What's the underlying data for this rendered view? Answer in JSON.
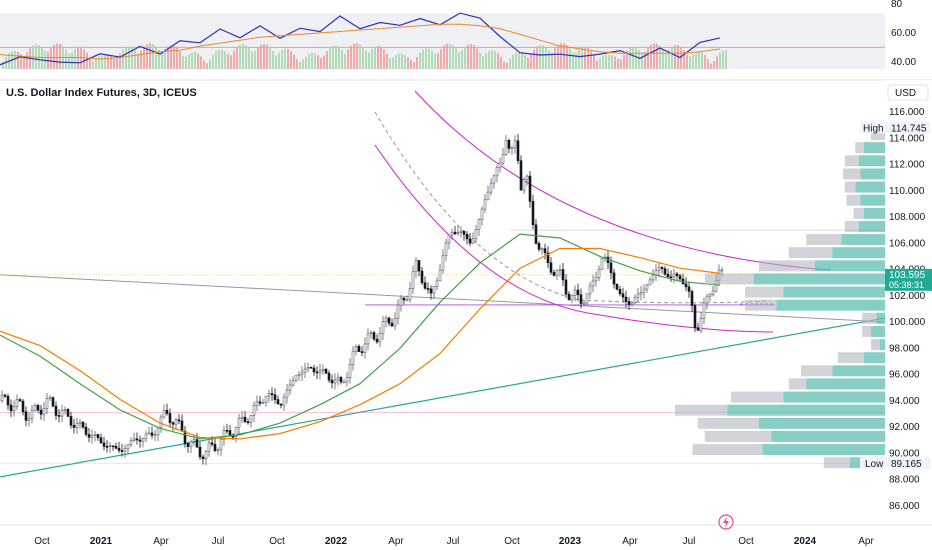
{
  "chart_data": [
    {
      "type": "line",
      "panel": "indicator",
      "ylim": [
        33,
        80
      ],
      "y_ticks": [
        "80",
        "60.00",
        "40.00"
      ],
      "y_tick_values": [
        80,
        60,
        40
      ],
      "band": [
        35,
        73.5
      ],
      "level_line": 50,
      "series": [
        {
          "color": "#2f2fb8",
          "x": [
            0,
            20,
            40,
            60,
            80,
            100,
            120,
            140,
            160,
            180,
            200,
            220,
            240,
            260,
            280,
            300,
            320,
            340,
            360,
            380,
            400,
            420,
            440,
            460,
            480,
            500,
            520,
            540,
            560,
            580,
            600,
            620,
            640,
            660,
            680,
            700,
            720
          ],
          "values": [
            38,
            45,
            43,
            40,
            38,
            44,
            43,
            52,
            47,
            55,
            52,
            61,
            56,
            66,
            58,
            64,
            60,
            70,
            62,
            68,
            67,
            71,
            65,
            72,
            69,
            58,
            48,
            46,
            45,
            42,
            44,
            48,
            44,
            51,
            43,
            52,
            55
          ]
        },
        {
          "color": "#e68a2e",
          "x": [
            0,
            20,
            40,
            60,
            80,
            100,
            120,
            140,
            160,
            180,
            200,
            220,
            240,
            260,
            280,
            300,
            320,
            340,
            360,
            380,
            400,
            420,
            440,
            460,
            480,
            500,
            520,
            540,
            560,
            580,
            600,
            620,
            640,
            660,
            680,
            700,
            720
          ],
          "values": [
            45,
            44,
            43,
            43,
            43,
            42,
            43,
            45,
            47,
            48,
            51,
            53,
            55,
            57,
            58,
            59,
            60,
            61,
            62,
            63,
            64,
            65,
            66,
            66,
            65,
            63,
            59,
            55,
            51,
            49,
            47,
            46,
            46,
            46,
            46,
            47,
            49
          ]
        }
      ]
    },
    {
      "type": "candlestick",
      "panel": "main",
      "title": "U.S. Dollar Index Futures, 3D, ICEUS",
      "currency_button": "USD",
      "ylim": [
        84.3,
        117.5
      ],
      "y_ticks": [
        "116.000",
        "114.000",
        "112.000",
        "110.000",
        "108.000",
        "106.000",
        "104.000",
        "102.000",
        "100.000",
        "98.000",
        "96.000",
        "94.000",
        "92.000",
        "90.000",
        "88.000",
        "86.000"
      ],
      "y_tick_values": [
        116,
        114,
        112,
        110,
        108,
        106,
        104,
        102,
        100,
        98,
        96,
        94,
        92,
        90,
        88,
        86
      ],
      "x_labels": [
        "Oct",
        "2021",
        "Apr",
        "Jul",
        "Oct",
        "2022",
        "Apr",
        "Jul",
        "Oct",
        "2023",
        "Apr",
        "Jul",
        "Oct",
        "2024",
        "Apr"
      ],
      "bold_x_labels": [
        "2021",
        "2022",
        "2023",
        "2024"
      ],
      "high": {
        "label": "High",
        "value": "114.745"
      },
      "low": {
        "label": "Low",
        "value": "89.165"
      },
      "last_price": {
        "value": "103.595",
        "countdown": "05:38:31"
      },
      "price_path": {
        "x": [
          0,
          15,
          30,
          45,
          60,
          75,
          90,
          105,
          120,
          135,
          150,
          165,
          175,
          185,
          195,
          205,
          220,
          235,
          250,
          265,
          280,
          295,
          310,
          325,
          340,
          355,
          365,
          375,
          385,
          395,
          405,
          415,
          420,
          430,
          440,
          450,
          460,
          470,
          480,
          490,
          500,
          505,
          510,
          515,
          520,
          525,
          530,
          535,
          540,
          545,
          550,
          560,
          570,
          580,
          590,
          600,
          610,
          620,
          630,
          640,
          650,
          660,
          670,
          680,
          690,
          695,
          700,
          710,
          720
        ],
        "values": [
          94.0,
          93.7,
          92.8,
          93.9,
          93.1,
          92.2,
          91.4,
          90.6,
          90.2,
          91.1,
          91.3,
          93.1,
          92.3,
          91.1,
          90.3,
          90.0,
          91.0,
          92.0,
          93.0,
          94.5,
          93.8,
          96.0,
          96.5,
          96.0,
          95.2,
          97.8,
          98.5,
          99.0,
          99.8,
          100.6,
          102.0,
          104.2,
          103.6,
          101.8,
          104.5,
          107.0,
          106.8,
          106.0,
          108.2,
          110.8,
          112.0,
          114.2,
          112.8,
          113.6,
          110.5,
          111.5,
          108.0,
          106.5,
          105.5,
          104.5,
          104.3,
          103.3,
          101.9,
          101.8,
          102.3,
          105.0,
          103.9,
          101.7,
          101.5,
          102.2,
          103.4,
          104.2,
          103.3,
          103.6,
          101.5,
          99.5,
          100.2,
          102.7,
          103.595
        ]
      },
      "series": [
        {
          "name": "green MA",
          "color": "#43a047",
          "x": [
            0,
            40,
            80,
            120,
            160,
            200,
            240,
            280,
            320,
            360,
            400,
            440,
            480,
            520,
            560,
            600,
            640,
            680,
            720
          ],
          "values": [
            99.0,
            97.4,
            95.3,
            93.3,
            91.9,
            91.1,
            91.4,
            92.3,
            93.7,
            95.3,
            98.0,
            101.5,
            104.5,
            106.7,
            106.4,
            105.0,
            103.9,
            103.1,
            102.8
          ]
        },
        {
          "name": "orange MA",
          "color": "#f57c00",
          "x": [
            0,
            40,
            80,
            120,
            160,
            200,
            240,
            280,
            320,
            360,
            400,
            440,
            480,
            520,
            560,
            600,
            640,
            680,
            720
          ],
          "values": [
            99.3,
            98.2,
            96.3,
            94.1,
            92.3,
            91.2,
            91.1,
            91.5,
            92.4,
            93.7,
            95.3,
            97.6,
            101.0,
            104.1,
            105.6,
            105.6,
            104.9,
            104.1,
            103.7
          ]
        }
      ],
      "volume_profile_bins": [
        {
          "y": 114.2,
          "left": 0.08,
          "right": 0.0
        },
        {
          "y": 113.2,
          "left": 0.05,
          "right": 0.12
        },
        {
          "y": 112.2,
          "left": 0.08,
          "right": 0.15
        },
        {
          "y": 111.2,
          "left": 0.1,
          "right": 0.14
        },
        {
          "y": 110.2,
          "left": 0.06,
          "right": 0.17
        },
        {
          "y": 109.2,
          "left": 0.08,
          "right": 0.14
        },
        {
          "y": 108.2,
          "left": 0.06,
          "right": 0.12
        },
        {
          "y": 107.2,
          "left": 0.08,
          "right": 0.15
        },
        {
          "y": 106.2,
          "left": 0.2,
          "right": 0.25
        },
        {
          "y": 105.2,
          "left": 0.25,
          "right": 0.3
        },
        {
          "y": 104.2,
          "left": 0.32,
          "right": 0.4
        },
        {
          "y": 103.2,
          "left": 0.28,
          "right": 0.75
        },
        {
          "y": 102.2,
          "left": 0.22,
          "right": 0.58
        },
        {
          "y": 101.2,
          "left": 0.18,
          "right": 0.62
        },
        {
          "y": 100.2,
          "left": 0.08,
          "right": 0.05
        },
        {
          "y": 99.2,
          "left": 0.05,
          "right": 0.08
        },
        {
          "y": 98.2,
          "left": 0.05,
          "right": 0.03
        },
        {
          "y": 97.2,
          "left": 0.15,
          "right": 0.12
        },
        {
          "y": 96.2,
          "left": 0.18,
          "right": 0.3
        },
        {
          "y": 95.2,
          "left": 0.1,
          "right": 0.45
        },
        {
          "y": 94.2,
          "left": 0.3,
          "right": 0.58
        },
        {
          "y": 93.2,
          "left": 0.3,
          "right": 0.9
        },
        {
          "y": 92.2,
          "left": 0.35,
          "right": 0.72
        },
        {
          "y": 91.2,
          "left": 0.38,
          "right": 0.65
        },
        {
          "y": 90.2,
          "left": 0.4,
          "right": 0.7
        },
        {
          "y": 89.2,
          "left": 0.15,
          "right": 0.2
        }
      ],
      "drawings": {
        "trendline_green": {
          "color": "#26a69a",
          "from": [
            0,
            88.2
          ],
          "to": [
            885,
            100.3
          ]
        },
        "trendline_gray": {
          "color": "#9598a1",
          "from": [
            0,
            103.6
          ],
          "to": [
            885,
            100.0
          ]
        },
        "hline_pink": {
          "color": "#f06292",
          "y": 93.1
        },
        "hline_gray_low": {
          "color": "#c9b36b",
          "y": 89.2
        },
        "last_price_line": {
          "color": "#f7c948",
          "y": 103.595
        },
        "hline_purple": {
          "color": "#a94ce0",
          "y": 101.3
        },
        "hline_thin": {
          "color": "#b2b5be",
          "y": 107.0
        }
      }
    }
  ]
}
